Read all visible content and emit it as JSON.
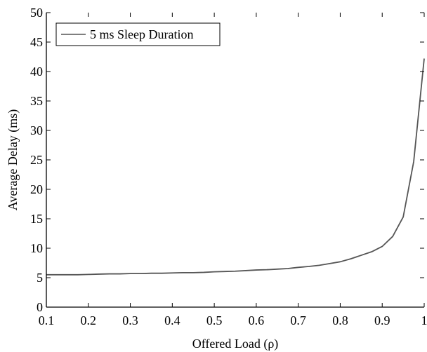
{
  "chart_data": {
    "type": "line",
    "title": "",
    "xlabel": "Offered Load (ρ)",
    "ylabel": "Average Delay (ms)",
    "xlim": [
      0.1,
      1.0
    ],
    "ylim": [
      0,
      50
    ],
    "xticks": [
      "0.1",
      "0.2",
      "0.3",
      "0.4",
      "0.5",
      "0.6",
      "0.7",
      "0.8",
      "0.9",
      "1"
    ],
    "xtick_values": [
      0.1,
      0.2,
      0.3,
      0.4,
      0.5,
      0.6,
      0.7,
      0.8,
      0.9,
      1.0
    ],
    "yticks": [
      "0",
      "5",
      "10",
      "15",
      "20",
      "25",
      "30",
      "35",
      "40",
      "45",
      "50"
    ],
    "ytick_values": [
      0,
      5,
      10,
      15,
      20,
      25,
      30,
      35,
      40,
      45,
      50
    ],
    "grid": false,
    "legend_position": "top-left",
    "series": [
      {
        "name": "5 ms Sleep Duration",
        "color": "#555555",
        "x": [
          0.1,
          0.125,
          0.15,
          0.175,
          0.2,
          0.225,
          0.25,
          0.275,
          0.3,
          0.325,
          0.35,
          0.375,
          0.4,
          0.425,
          0.45,
          0.475,
          0.5,
          0.525,
          0.55,
          0.575,
          0.6,
          0.625,
          0.65,
          0.675,
          0.7,
          0.725,
          0.75,
          0.775,
          0.8,
          0.825,
          0.85,
          0.875,
          0.9,
          0.925,
          0.95,
          0.975,
          1.0
        ],
        "y": [
          5.5,
          5.5,
          5.5,
          5.5,
          5.55,
          5.6,
          5.65,
          5.65,
          5.7,
          5.7,
          5.75,
          5.75,
          5.8,
          5.85,
          5.85,
          5.9,
          6.0,
          6.05,
          6.1,
          6.2,
          6.3,
          6.35,
          6.45,
          6.55,
          6.75,
          6.9,
          7.1,
          7.4,
          7.7,
          8.2,
          8.8,
          9.4,
          10.3,
          12.0,
          15.3,
          24.7,
          42.2
        ]
      }
    ]
  }
}
